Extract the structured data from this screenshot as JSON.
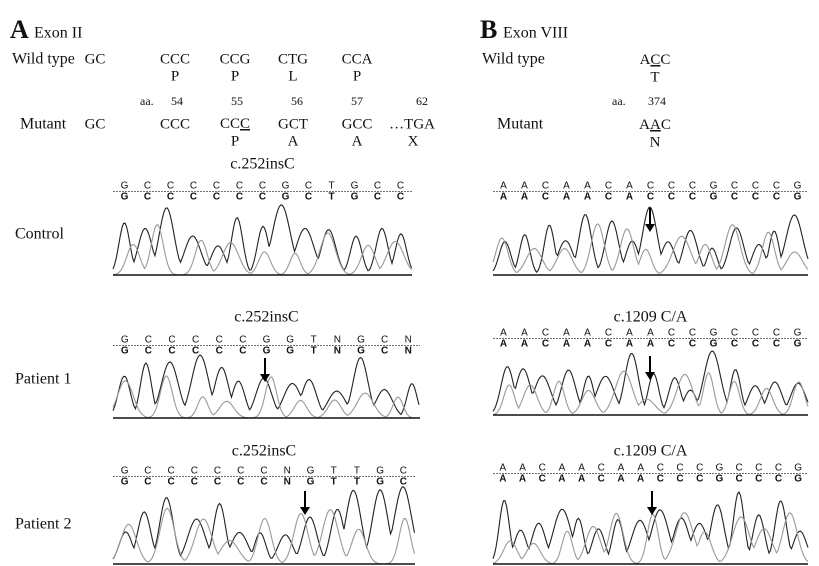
{
  "panel_a": {
    "letter": "A",
    "title": "Exon II",
    "wild_type_label": "Wild type",
    "wild_type_codons": [
      "GC",
      "CCC",
      "CCG",
      "CTG",
      "CCA"
    ],
    "wild_type_aa": [
      "P",
      "P",
      "L",
      "P"
    ],
    "aa_label": "aa.",
    "aa_positions": [
      54,
      55,
      56,
      57,
      62
    ],
    "mutant_label": "Mutant",
    "mutant_codons": [
      "GC",
      "CCC",
      [
        "CC",
        "C"
      ],
      "GCT",
      "GCC",
      "…TGA"
    ],
    "mutant_aa": [
      "P",
      "A",
      "A",
      "X"
    ],
    "traces": [
      {
        "label": "Control",
        "mutation": "c.252insC",
        "sequence": [
          "G",
          "C",
          "C",
          "C",
          "C",
          "C",
          "C",
          "G",
          "C",
          "T",
          "G",
          "C",
          "C"
        ]
      },
      {
        "label": "Patient 1",
        "mutation": "c.252insC",
        "sequence": [
          "G",
          "C",
          "C",
          "C",
          "C",
          "C",
          "G",
          "G",
          "T",
          "N",
          "G",
          "C",
          "N"
        ]
      },
      {
        "label": "Patient 2",
        "mutation": "c.252insC",
        "sequence": [
          "G",
          "C",
          "C",
          "C",
          "C",
          "C",
          "C",
          "N",
          "G",
          "T",
          "T",
          "G",
          "C"
        ]
      }
    ]
  },
  "panel_b": {
    "letter": "B",
    "title": "Exon VIII",
    "wild_type_label": "Wild type",
    "wild_type_codon": [
      "A",
      "C",
      "C"
    ],
    "wild_type_aa": "T",
    "aa_label": "aa.",
    "aa_position": 374,
    "mutant_label": "Mutant",
    "mutant_codon": [
      "A",
      "A",
      "C"
    ],
    "mutant_aa": "N",
    "traces": [
      {
        "sequence": [
          "A",
          "A",
          "C",
          "A",
          "A",
          "C",
          "A",
          "C",
          "C",
          "C",
          "G",
          "C",
          "C",
          "C",
          "G"
        ]
      },
      {
        "mutation": "c.1209 C/A",
        "sequence": [
          "A",
          "A",
          "C",
          "A",
          "A",
          "C",
          "A",
          "A",
          "C",
          "C",
          "G",
          "C",
          "C",
          "C",
          "G"
        ]
      },
      {
        "mutation": "c.1209 C/A",
        "sequence": [
          "A",
          "A",
          "C",
          "A",
          "A",
          "C",
          "A",
          "A",
          "C",
          "C",
          "C",
          "G",
          "C",
          "C",
          "C",
          "G"
        ]
      }
    ]
  }
}
